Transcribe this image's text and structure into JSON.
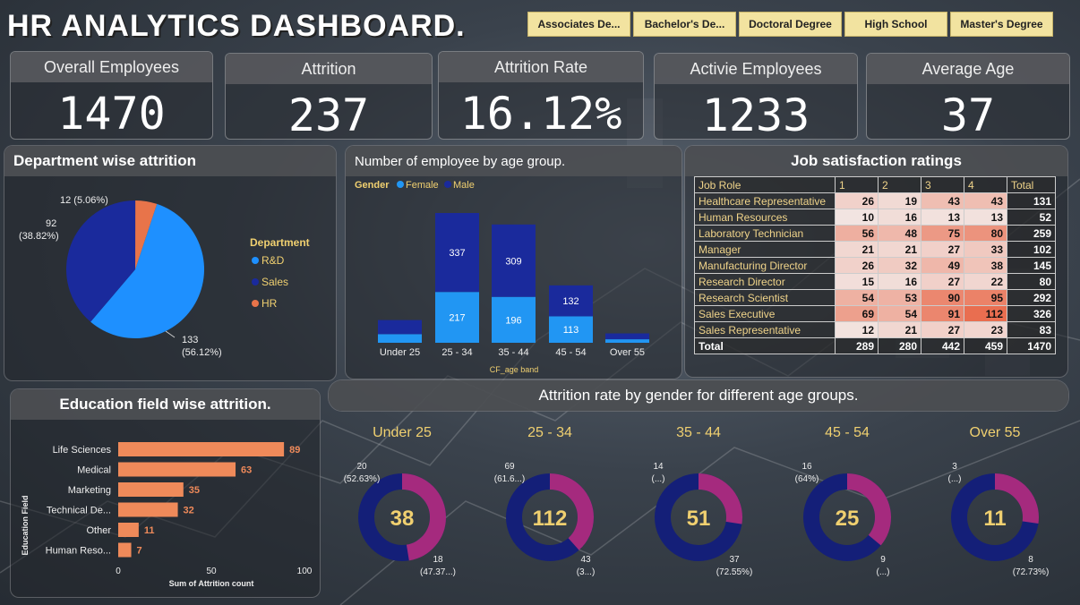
{
  "title": "HR ANALYTICS DASHBOARD.",
  "slicers": [
    "Associates De...",
    "Bachelor's De...",
    "Doctoral Degree",
    "High School",
    "Master's Degree"
  ],
  "kpis": [
    {
      "label": "Overall Employees",
      "value": "1470"
    },
    {
      "label": "Attrition",
      "value": "237"
    },
    {
      "label": "Attrition Rate",
      "value": "16.12%"
    },
    {
      "label": "Activie Employees",
      "value": "1233"
    },
    {
      "label": "Average Age",
      "value": "37"
    }
  ],
  "dept": {
    "title": "Department wise attrition",
    "legend_title": "Department",
    "slice_labels": [
      {
        "count": "133",
        "pct": "(56.12%)"
      },
      {
        "count": "92",
        "pct": "(38.82%)"
      },
      {
        "count": "12 (5.06%)",
        "pct": ""
      }
    ]
  },
  "age": {
    "title": "Number of employee by age group.",
    "legend_title": "Gender",
    "xlabel": "CF_age band"
  },
  "jobsat": {
    "title": "Job satisfaction ratings",
    "headers": [
      "Job Role",
      "1",
      "2",
      "3",
      "4",
      "Total"
    ],
    "rows": [
      [
        "Healthcare Representative",
        "26",
        "19",
        "43",
        "43",
        "131"
      ],
      [
        "Human Resources",
        "10",
        "16",
        "13",
        "13",
        "52"
      ],
      [
        "Laboratory Technician",
        "56",
        "48",
        "75",
        "80",
        "259"
      ],
      [
        "Manager",
        "21",
        "21",
        "27",
        "33",
        "102"
      ],
      [
        "Manufacturing Director",
        "26",
        "32",
        "49",
        "38",
        "145"
      ],
      [
        "Research Director",
        "15",
        "16",
        "27",
        "22",
        "80"
      ],
      [
        "Research Scientist",
        "54",
        "53",
        "90",
        "95",
        "292"
      ],
      [
        "Sales Executive",
        "69",
        "54",
        "91",
        "112",
        "326"
      ],
      [
        "Sales Representative",
        "12",
        "21",
        "27",
        "23",
        "83"
      ]
    ],
    "total": [
      "Total",
      "289",
      "280",
      "442",
      "459",
      "1470"
    ]
  },
  "edu": {
    "title": "Education field wise attrition.",
    "ylabel": "Education Field",
    "xlabel": "Sum of Attrition count"
  },
  "donut": {
    "title": "Attrition rate by gender for different age groups.",
    "groups": [
      {
        "name": "Under 25",
        "center": "38",
        "a": "20",
        "a_pct": "(52.63%)",
        "b": "18",
        "b_pct": "(47.37...)"
      },
      {
        "name": "25 - 34",
        "center": "112",
        "a": "69",
        "a_pct": "(61.6...)",
        "b": "43",
        "b_pct": "(3...)"
      },
      {
        "name": "35 - 44",
        "center": "51",
        "a": "14",
        "a_pct": "(...)",
        "b": "37",
        "b_pct": "(72.55%)"
      },
      {
        "name": "45 - 54",
        "center": "25",
        "a": "16",
        "a_pct": "(64%)",
        "b": "9",
        "b_pct": "(...)"
      },
      {
        "name": "Over 55",
        "center": "11",
        "a": "3",
        "a_pct": "(...)",
        "b": "8",
        "b_pct": "(72.73%)"
      }
    ],
    "values": [
      [
        20,
        18
      ],
      [
        69,
        43
      ],
      [
        37,
        14
      ],
      [
        16,
        9
      ],
      [
        8,
        3
      ]
    ]
  },
  "colors": {
    "rd": "#1e90ff",
    "sales": "#1a2a9c",
    "hr": "#e8744a",
    "female": "#2196f3",
    "male": "#1a2a9c",
    "donut_a": "#141f78",
    "donut_b": "#a52a7e",
    "bar": "#ef8a5a",
    "gold": "#f0d070"
  },
  "chart_data": [
    {
      "type": "pie",
      "title": "Department wise attrition",
      "legend_title": "Department",
      "categories": [
        "R&D",
        "Sales",
        "HR"
      ],
      "values": [
        133,
        92,
        12
      ]
    },
    {
      "type": "bar",
      "title": "Number of employee by age group.",
      "xlabel": "CF_age band",
      "categories": [
        "Under 25",
        "25 - 34",
        "35 - 44",
        "45 - 54",
        "Over 55"
      ],
      "series": [
        {
          "name": "Female",
          "values": [
            37,
            217,
            196,
            113,
            15
          ]
        },
        {
          "name": "Male",
          "values": [
            60,
            337,
            309,
            132,
            25
          ]
        }
      ],
      "ylim": [
        0,
        600
      ]
    },
    {
      "type": "bar",
      "title": "Education field wise attrition.",
      "xlabel": "Sum of Attrition count",
      "ylabel": "Education Field",
      "categories": [
        "Life Sciences",
        "Medical",
        "Marketing",
        "Technical De...",
        "Other",
        "Human Reso..."
      ],
      "values": [
        89,
        63,
        35,
        32,
        11,
        7
      ],
      "xlim": [
        0,
        100
      ],
      "ticks": [
        "0",
        "50",
        "100"
      ]
    }
  ]
}
